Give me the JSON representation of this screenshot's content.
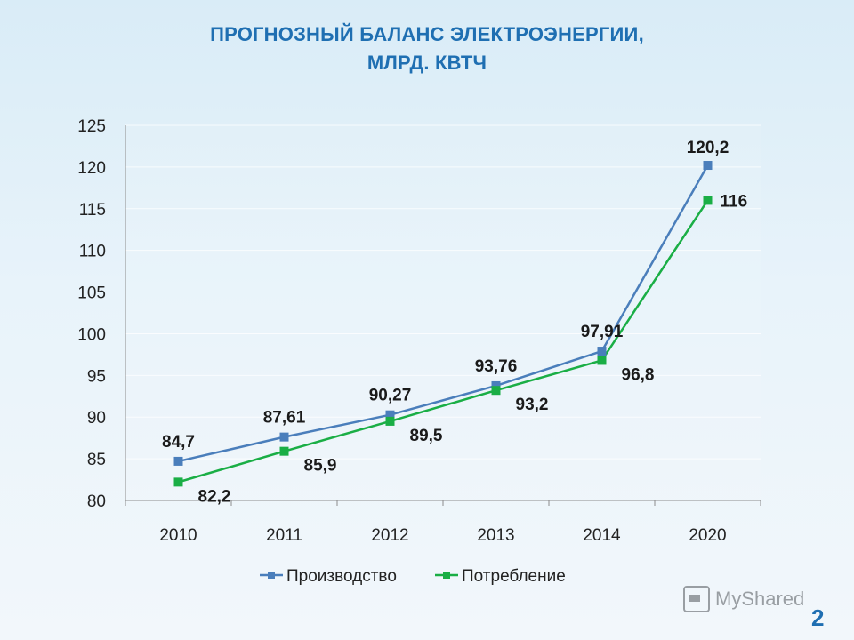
{
  "slide": {
    "title_line1": "ПРОГНОЗНЫЙ БАЛАНС ЭЛЕКТРОЭНЕРГИИ,",
    "title_line2": "МЛРД. КВТЧ",
    "page_number": "2",
    "watermark": "MyShared"
  },
  "colors": {
    "production": "#4a7ebb",
    "consumption": "#1aae45",
    "title": "#1f6fb2"
  },
  "chart_data": {
    "type": "line",
    "title": "ПРОГНОЗНЫЙ БАЛАНС ЭЛЕКТРОЭНЕРГИИ, МЛРД. КВТЧ",
    "categories": [
      "2010",
      "2011",
      "2012",
      "2013",
      "2014",
      "2020"
    ],
    "ylim": [
      80,
      125
    ],
    "yticks": [
      80,
      85,
      90,
      95,
      100,
      105,
      110,
      115,
      120,
      125
    ],
    "grid": true,
    "legend": "bottom",
    "series": [
      {
        "name": "Производство",
        "values": [
          84.7,
          87.61,
          90.27,
          93.76,
          97.91,
          120.2
        ],
        "labels": [
          "84,7",
          "87,61",
          "90,27",
          "93,76",
          "97,91",
          "120,2"
        ]
      },
      {
        "name": "Потребление",
        "values": [
          82.2,
          85.9,
          89.5,
          93.2,
          96.8,
          116
        ],
        "labels": [
          "82,2",
          "85,9",
          "89,5",
          "93,2",
          "96,8",
          "116"
        ]
      }
    ]
  }
}
